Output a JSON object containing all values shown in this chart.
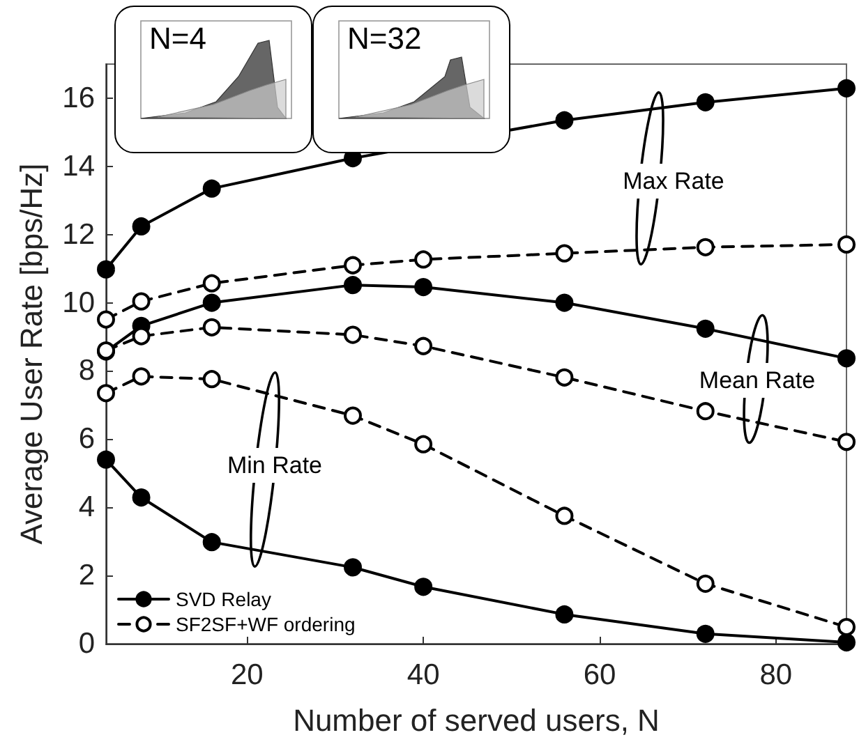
{
  "chart_data": {
    "type": "line",
    "xlabel": "Number of served users, N",
    "ylabel": "Average User Rate [bps/Hz]",
    "x": [
      4,
      8,
      16,
      32,
      40,
      56,
      72,
      88
    ],
    "xlim": [
      4,
      88
    ],
    "xticks": [
      20,
      40,
      60,
      80
    ],
    "ylim": [
      0,
      17
    ],
    "yticks": [
      0,
      2,
      4,
      6,
      8,
      10,
      12,
      14,
      16
    ],
    "grid": false,
    "legend": "bottom left",
    "marker": "circle",
    "series": [
      {
        "name": "SVD Relay",
        "color": "#000000",
        "line_style": "solid",
        "values": [
          10.98,
          12.24,
          13.35,
          14.24,
          null,
          15.35,
          15.88,
          16.29
        ]
      },
      {
        "color": "#000000",
        "line_style": "solid",
        "values": [
          8.57,
          9.32,
          10.0,
          10.52,
          10.46,
          10.0,
          9.24,
          8.37
        ]
      },
      {
        "color": "#000000",
        "line_style": "solid",
        "values": [
          5.4,
          4.29,
          2.98,
          2.24,
          1.67,
          0.86,
          0.29,
          0.04
        ]
      },
      {
        "name": "SF2SF+WF ordering",
        "color": "#000000",
        "line_style": "dashed",
        "values": [
          9.51,
          10.04,
          10.57,
          11.1,
          11.27,
          11.45,
          11.63,
          11.71
        ]
      },
      {
        "color": "#000000",
        "line_style": "dashed",
        "values": [
          8.6,
          9.02,
          9.28,
          9.06,
          8.73,
          7.81,
          6.82,
          5.92
        ]
      },
      {
        "color": "#000000",
        "line_style": "dashed",
        "values": [
          7.35,
          7.84,
          7.76,
          6.69,
          5.85,
          3.75,
          1.76,
          0.49
        ]
      }
    ],
    "annotations": [
      "Max Rate",
      "Mean Rate",
      "Min Rate",
      "N=4",
      "N=32"
    ]
  }
}
